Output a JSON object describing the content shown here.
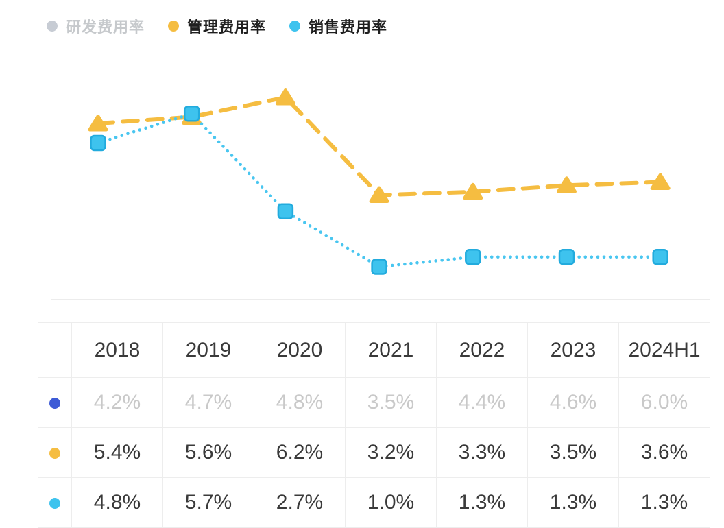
{
  "legend": {
    "items": [
      {
        "key": "rd-expense-ratio",
        "label": "研发费用率",
        "color": "#c7ccd4",
        "state": "disabled"
      },
      {
        "key": "admin-expense-ratio",
        "label": "管理费用率",
        "color": "#f5bd41",
        "state": "active"
      },
      {
        "key": "selling-expense-ratio",
        "label": "销售费用率",
        "color": "#3ec3ee",
        "state": "active"
      }
    ]
  },
  "chart_data": {
    "type": "line",
    "categories": [
      "2018",
      "2019",
      "2020",
      "2021",
      "2022",
      "2023",
      "2024H1"
    ],
    "series": [
      {
        "key": "rd-expense-ratio",
        "name": "研发费用率",
        "values": [
          4.2,
          4.7,
          4.8,
          3.5,
          4.4,
          4.6,
          6.0
        ],
        "color": "#c7ccd4",
        "visible": false,
        "marker": "circle",
        "line_style": "solid"
      },
      {
        "key": "admin-expense-ratio",
        "name": "管理费用率",
        "values": [
          5.4,
          5.6,
          6.2,
          3.2,
          3.3,
          3.5,
          3.6
        ],
        "color": "#f5bd41",
        "visible": true,
        "marker": "triangle",
        "line_style": "dashed"
      },
      {
        "key": "selling-expense-ratio",
        "name": "销售费用率",
        "values": [
          4.8,
          5.7,
          2.7,
          1.0,
          1.3,
          1.3,
          1.3
        ],
        "color": "#49c6f0",
        "marker_fill": "#3ec3ee",
        "marker_stroke": "#22abdd",
        "visible": true,
        "marker": "square",
        "line_style": "dotted"
      }
    ],
    "unit": "%",
    "ylim": [
      0,
      7
    ],
    "grid": false,
    "legend_position": "top-left"
  },
  "table": {
    "columns": [
      "2018",
      "2019",
      "2020",
      "2021",
      "2022",
      "2023",
      "2024H1"
    ],
    "rows": [
      {
        "key": "rd-expense-ratio",
        "marker_color": "#3d5bd6",
        "muted": true,
        "values": [
          "4.2%",
          "4.7%",
          "4.8%",
          "3.5%",
          "4.4%",
          "4.6%",
          "6.0%"
        ]
      },
      {
        "key": "admin-expense-ratio",
        "marker_color": "#f5bd41",
        "muted": false,
        "values": [
          "5.4%",
          "5.6%",
          "6.2%",
          "3.2%",
          "3.3%",
          "3.5%",
          "3.6%"
        ]
      },
      {
        "key": "selling-expense-ratio",
        "marker_color": "#3ec3ee",
        "muted": false,
        "values": [
          "4.8%",
          "5.7%",
          "2.7%",
          "1.0%",
          "1.3%",
          "1.3%",
          "1.3%"
        ]
      }
    ]
  }
}
